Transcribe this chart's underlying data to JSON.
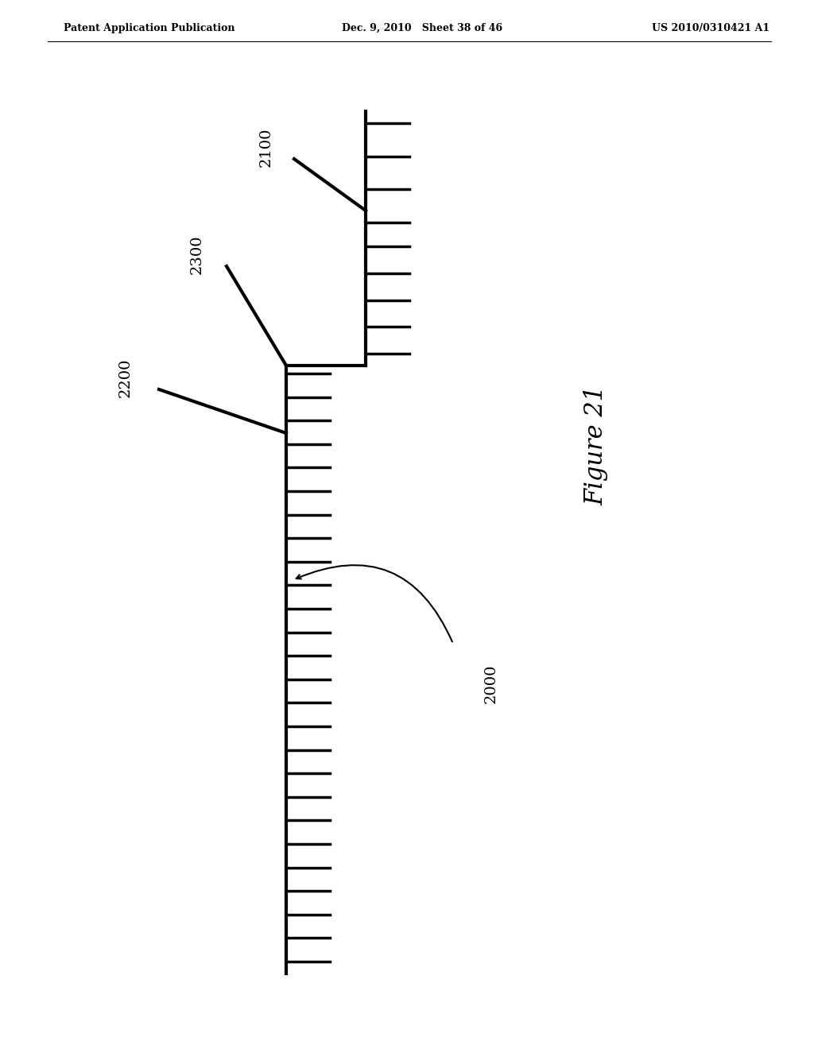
{
  "background_color": "#ffffff",
  "header_left": "Patent Application Publication",
  "header_mid": "Dec. 9, 2010   Sheet 38 of 46",
  "header_right": "US 2010/0310421 A1",
  "figure_label": "Figure 21",
  "label_2000": "2000",
  "label_2100": "2100",
  "label_2200": "2200",
  "label_2300": "2300",
  "lw": 3.0,
  "tick_lw": 2.5
}
